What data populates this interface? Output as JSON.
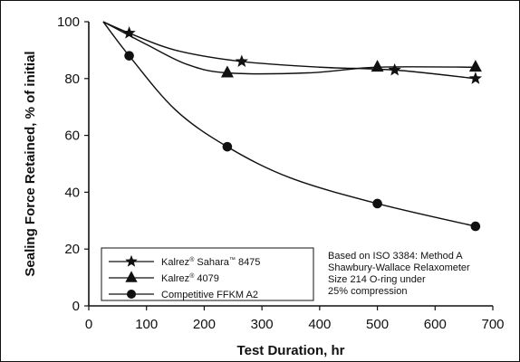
{
  "chart_data": {
    "type": "line",
    "xlabel": "Test Duration, hr",
    "ylabel": "Sealing Force Retained, % of initial",
    "xlim": [
      0,
      700
    ],
    "ylim": [
      0,
      100
    ],
    "x_ticks": [
      "0",
      "100",
      "200",
      "300",
      "400",
      "500",
      "600",
      "700"
    ],
    "y_ticks": [
      "0",
      "20",
      "40",
      "60",
      "80",
      "100"
    ],
    "grid": false,
    "legend_position": "bottom-left",
    "series": [
      {
        "name": "Kalrez® Sahara™ 8475",
        "marker": "star",
        "x": [
          25,
          70,
          265,
          530,
          670
        ],
        "y": [
          100,
          96,
          86,
          83,
          80
        ],
        "line_x": [
          25,
          70,
          150,
          265,
          400,
          530,
          670
        ],
        "line_y": [
          100,
          96,
          90,
          86,
          84,
          83,
          80
        ]
      },
      {
        "name": "Kalrez® 4079",
        "marker": "triangle",
        "x": [
          25,
          240,
          500,
          670
        ],
        "y": [
          100,
          82,
          84,
          84
        ],
        "line_x": [
          25,
          100,
          170,
          240,
          380,
          500,
          670
        ],
        "line_y": [
          100,
          92,
          85,
          82,
          82,
          84,
          84
        ]
      },
      {
        "name": "Competitive FFKM A2",
        "marker": "circle",
        "x": [
          25,
          70,
          240,
          500,
          670
        ],
        "y": [
          100,
          88,
          56,
          36,
          28
        ],
        "line_x": [
          25,
          70,
          150,
          240,
          350,
          500,
          670
        ],
        "line_y": [
          100,
          88,
          69,
          56,
          45,
          36,
          28
        ]
      }
    ],
    "legend": [
      {
        "base": "Kalrez",
        "sup1": "®",
        "mid": " Sahara",
        "sup2": "™",
        "tail": " 8475"
      },
      {
        "base": "Kalrez",
        "sup1": "®",
        "mid": " 4079",
        "sup2": "",
        "tail": ""
      },
      {
        "base": "Competitive FFKM A2",
        "sup1": "",
        "mid": "",
        "sup2": "",
        "tail": ""
      }
    ],
    "annotation_lines": [
      "Based on ISO 3384: Method A",
      "Shawbury-Wallace Relaxometer",
      "Size 214 O-ring under",
      "    25% compression"
    ]
  },
  "colors": {
    "line": "#111111",
    "background": "#ffffff",
    "frame": "#111111"
  }
}
